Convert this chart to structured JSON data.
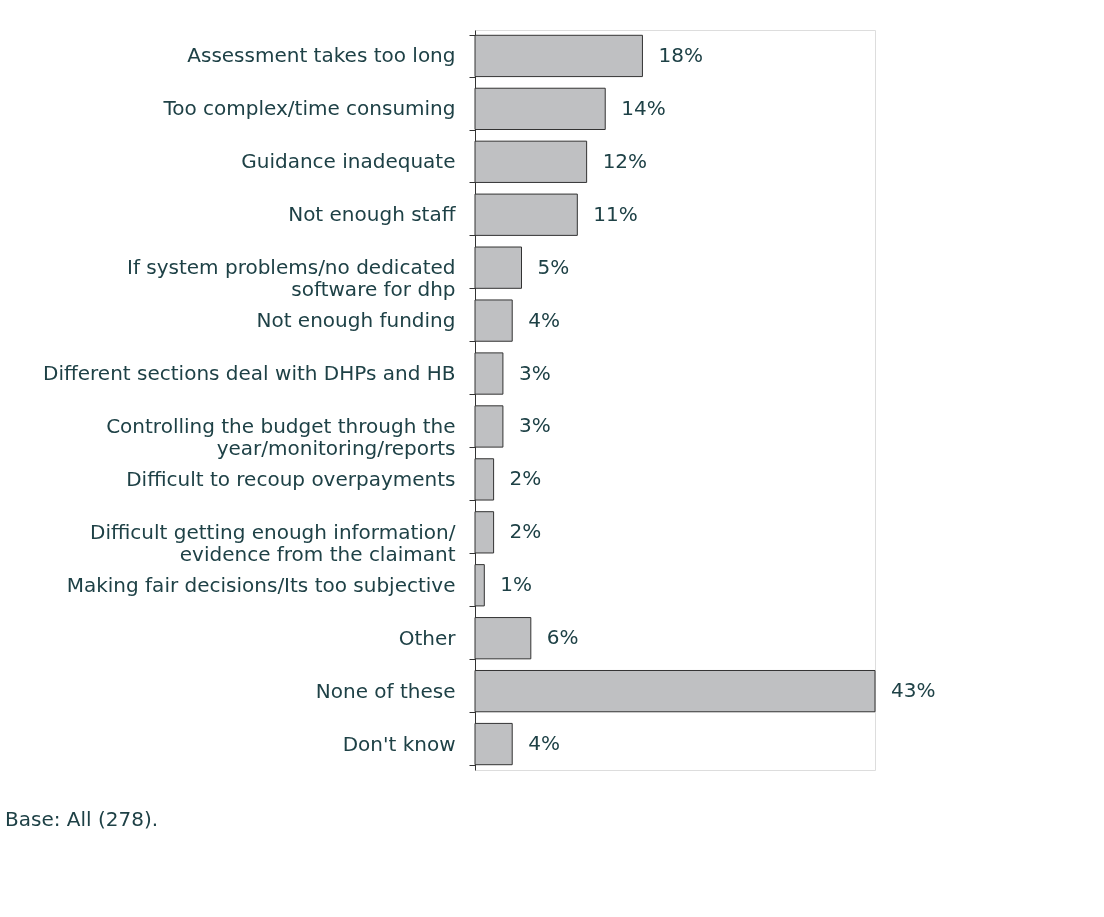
{
  "chart_data": {
    "type": "bar",
    "orientation": "horizontal",
    "data_labels": true,
    "categories": [
      "Assessment takes too long",
      "Too complex/time consuming",
      "Guidance inadequate",
      "Not enough staff",
      "If system problems/no dedicated\nsoftware for dhp",
      "Not enough funding",
      "Different sections deal with DHPs and HB",
      "Controlling the budget through the\nyear/monitoring/reports",
      "Difficult to recoup overpayments",
      "Difficult getting enough information/\nevidence from the claimant",
      "Making fair decisions/Its too subjective",
      "Other",
      "None of these",
      "Don't know"
    ],
    "values": [
      18,
      14,
      12,
      11,
      5,
      4,
      3,
      3,
      2,
      2,
      1,
      6,
      43,
      4
    ],
    "value_labels": [
      "18%",
      "14%",
      "12%",
      "11%",
      "5%",
      "4%",
      "3%",
      "3%",
      "2%",
      "2%",
      "1%",
      "6%",
      "43%",
      "4%"
    ],
    "color": "#bfc0c2",
    "annotations": [
      "Base: All (278)."
    ]
  }
}
